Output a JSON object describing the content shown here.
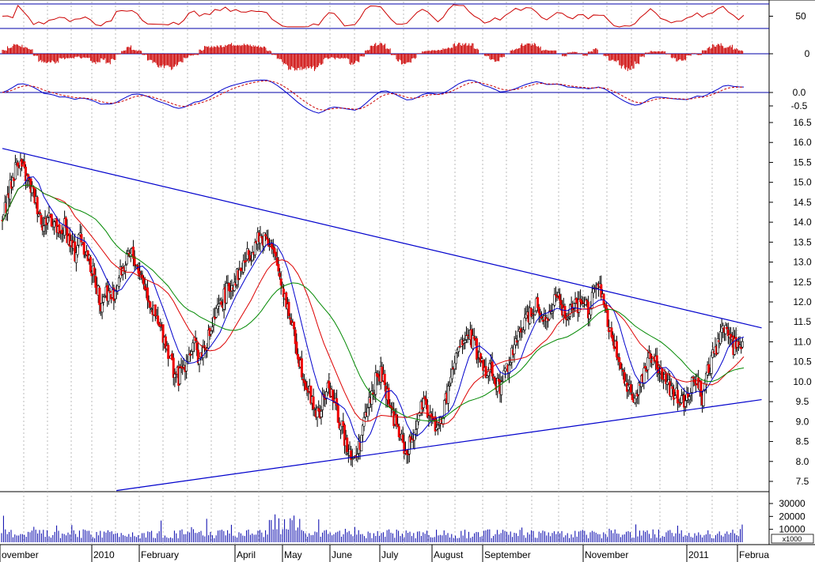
{
  "chart_data": [
    {
      "panel": "rsi",
      "type": "line",
      "y_ticks": [
        "50"
      ],
      "guide_lines": [
        20,
        80
      ],
      "colors": {
        "line": "#cc0000",
        "guide": "#0000aa"
      }
    },
    {
      "panel": "histogram",
      "type": "bar",
      "y_ticks": [
        "0"
      ],
      "colors": {
        "bars": "#cc0000",
        "zero": "#0000aa"
      }
    },
    {
      "panel": "macd",
      "type": "line",
      "y_ticks": [
        "0.0",
        "-0.5"
      ],
      "colors": {
        "macd": "#0000cc",
        "signal": "#cc0000",
        "zero": "#0000aa"
      }
    },
    {
      "panel": "price",
      "type": "line",
      "y_ticks": [
        "16.5",
        "16.0",
        "15.5",
        "15.0",
        "14.5",
        "14.0",
        "13.5",
        "13.0",
        "12.5",
        "12.0",
        "11.5",
        "11.0",
        "10.5",
        "10.0",
        "9.5",
        "9.0",
        "8.5",
        "8.0",
        "7.5"
      ],
      "ylim": [
        7.25,
        16.75
      ],
      "close": [
        14.0,
        14.6,
        15.1,
        15.6,
        15.3,
        15.0,
        14.7,
        14.3,
        13.9,
        14.2,
        14.0,
        13.6,
        13.9,
        13.5,
        13.2,
        13.7,
        13.3,
        12.9,
        12.5,
        12.0,
        12.3,
        12.1,
        12.4,
        12.8,
        13.0,
        13.2,
        12.9,
        12.6,
        12.2,
        11.8,
        11.4,
        11.2,
        10.8,
        10.3,
        10.1,
        10.4,
        10.7,
        10.9,
        10.6,
        10.9,
        11.2,
        11.6,
        11.9,
        12.2,
        12.4,
        12.6,
        12.8,
        13.1,
        13.3,
        13.5,
        13.6,
        13.7,
        13.3,
        12.9,
        12.4,
        11.9,
        11.3,
        10.7,
        10.2,
        9.8,
        9.4,
        9.1,
        9.6,
        9.9,
        9.5,
        9.0,
        8.6,
        8.3,
        8.0,
        8.5,
        9.1,
        9.6,
        10.0,
        10.2,
        9.8,
        9.3,
        8.9,
        8.5,
        8.2,
        8.6,
        9.0,
        9.4,
        9.3,
        9.0,
        8.8,
        9.2,
        9.8,
        10.3,
        10.8,
        11.0,
        11.2,
        10.9,
        10.6,
        10.3,
        10.4,
        10.1,
        9.8,
        10.3,
        10.6,
        10.9,
        11.3,
        11.6,
        11.8,
        12.0,
        11.7,
        11.5,
        11.9,
        12.1,
        11.8,
        11.6,
        11.9,
        11.8,
        12.0,
        11.8,
        12.2,
        12.4,
        11.9,
        11.4,
        10.9,
        10.5,
        10.1,
        9.8,
        9.6,
        9.9,
        10.4,
        10.7,
        10.5,
        10.2,
        10.0,
        9.8,
        9.7,
        9.6,
        9.5,
        9.9,
        10.1,
        9.6,
        10.2,
        10.6,
        10.9,
        11.4,
        11.2,
        10.9,
        11.0,
        11.1
      ],
      "moving_averages": [
        {
          "period": "short",
          "color": "#0000cc"
        },
        {
          "period": "medium",
          "color": "#dd0000"
        },
        {
          "period": "long",
          "color": "#008800"
        }
      ],
      "trendlines": [
        {
          "from": [
            0,
            15.85
          ],
          "to": [
            144,
            11.35
          ],
          "color": "#0000cc"
        },
        {
          "from": [
            22,
            7.27
          ],
          "to": [
            144,
            9.55
          ],
          "color": "#0000cc"
        }
      ]
    },
    {
      "panel": "volume",
      "type": "bar",
      "y_ticks": [
        "30000",
        "20000",
        "10000"
      ],
      "unit_label": "x1000",
      "colors": {
        "bars": "#0000aa"
      }
    }
  ],
  "x_axis": {
    "labels": [
      "ovember",
      "2010",
      "February",
      "April",
      "May",
      "June",
      "July",
      "August",
      "September",
      "November",
      "2011",
      "Februa"
    ]
  }
}
